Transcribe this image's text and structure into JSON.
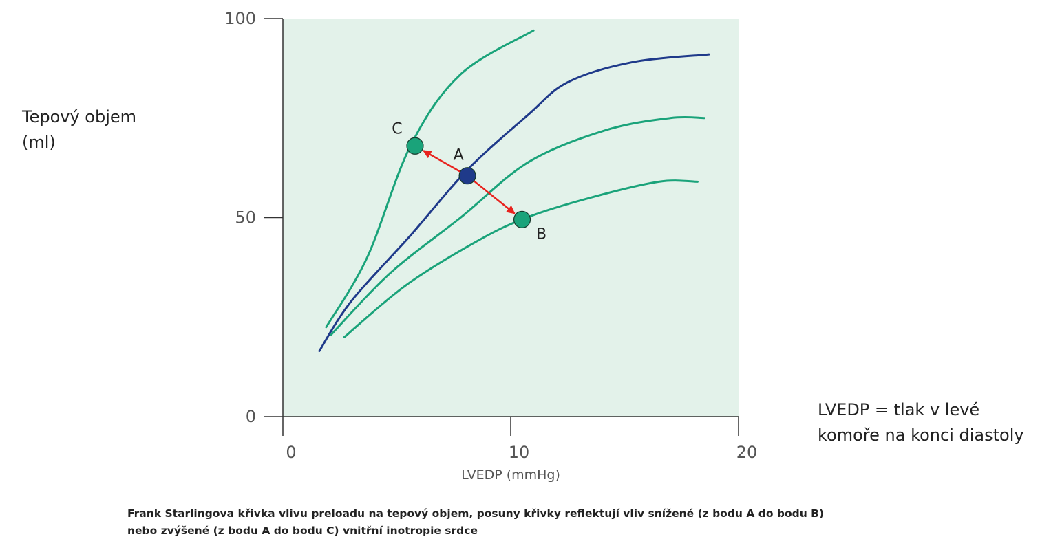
{
  "chart_data": {
    "type": "line",
    "xlabel": "LVEDP (mmHg)",
    "ylabel_lines": [
      "Tepový objem",
      "(ml)"
    ],
    "xlim": [
      0,
      20
    ],
    "ylim": [
      0,
      100
    ],
    "x_ticks": [
      "0",
      "10",
      "20"
    ],
    "y_ticks": [
      "0",
      "50",
      "100"
    ],
    "grid": false,
    "series": [
      {
        "key": "upper",
        "color": "#1aa37a",
        "x": [
          1.9,
          3.7,
          5.6,
          7.8,
          11.0
        ],
        "y": [
          22.5,
          40,
          68,
          86,
          97
        ]
      },
      {
        "key": "normal",
        "color": "#1f3a8a",
        "x": [
          1.6,
          3.0,
          5.6,
          8.1,
          10.8,
          12.5,
          15.3,
          18.7
        ],
        "y": [
          16.5,
          29,
          45.5,
          62,
          76,
          84,
          89,
          91
        ]
      },
      {
        "key": "middle",
        "color": "#1aa37a",
        "x": [
          2.1,
          4.7,
          7.8,
          10.8,
          14.2,
          17.0,
          18.5
        ],
        "y": [
          20.5,
          36,
          50,
          64,
          72,
          75,
          75
        ]
      },
      {
        "key": "lower",
        "color": "#1aa37a",
        "x": [
          2.7,
          5.4,
          8.5,
          10.7,
          13.5,
          16.5,
          18.2
        ],
        "y": [
          20,
          33,
          44,
          50,
          55,
          59,
          59
        ]
      }
    ],
    "points": [
      {
        "label": "A",
        "x": 8.1,
        "y": 60.5,
        "color": "#1f3a8a"
      },
      {
        "label": "B",
        "x": 10.5,
        "y": 49.5,
        "color": "#1aa37a"
      },
      {
        "label": "C",
        "x": 5.8,
        "y": 68,
        "color": "#1aa37a"
      }
    ],
    "arrows": [
      {
        "from": "A",
        "to": "C",
        "color": "#e8231e"
      },
      {
        "from": "A",
        "to": "B",
        "color": "#e8231e"
      }
    ],
    "plot_background": "#e3f2ea"
  },
  "note_lines": [
    "LVEDP = tlak v levé",
    "komoře na konci diastoly"
  ],
  "caption_lines": [
    "Frank Starlingova křivka vlivu preloadu na tepový objem, posuny křivky reflektují vliv snížené (z bodu A do bodu B)",
    "nebo zvýšené (z bodu A do bodu C) vnitřní inotropie srdce"
  ]
}
